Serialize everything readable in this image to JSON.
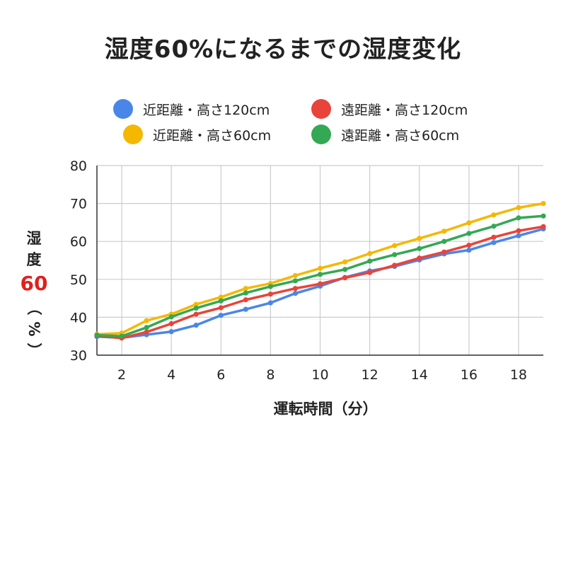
{
  "chart_data": {
    "type": "line",
    "title": "湿度60%になるまでの湿度変化",
    "xlabel": "運転時間（分）",
    "ylabel_parts": [
      "湿",
      "度",
      "60",
      "（",
      "%",
      "）"
    ],
    "xlim": [
      1,
      19
    ],
    "ylim": [
      30,
      80
    ],
    "xticks": [
      2,
      4,
      6,
      8,
      10,
      12,
      14,
      16,
      18
    ],
    "yticks": [
      30,
      40,
      50,
      60,
      70,
      80
    ],
    "grid": true,
    "legend_position": "top",
    "x": [
      1,
      2,
      3,
      4,
      5,
      6,
      7,
      8,
      9,
      10,
      11,
      12,
      13,
      14,
      15,
      16,
      17,
      18,
      19
    ],
    "series": [
      {
        "name": "近距離・高さ120cm",
        "color": "#4a86e8",
        "values": [
          34.9,
          34.6,
          35.4,
          36.2,
          37.9,
          40.5,
          42.1,
          43.8,
          46.3,
          48.2,
          50.5,
          52.2,
          53.4,
          55.1,
          56.7,
          57.7,
          59.7,
          61.5,
          63.3
        ]
      },
      {
        "name": "遠距離・高さ120cm",
        "color": "#e8443a",
        "values": [
          35.1,
          34.5,
          36.1,
          38.3,
          40.8,
          42.5,
          44.6,
          46.1,
          47.6,
          48.8,
          50.4,
          51.8,
          53.7,
          55.6,
          57.2,
          59.0,
          61.1,
          62.8,
          63.9
        ]
      },
      {
        "name": "近距離・高さ60cm",
        "color": "#f4b800",
        "values": [
          35.5,
          35.8,
          39.1,
          40.8,
          43.4,
          45.3,
          47.6,
          48.9,
          51.0,
          52.9,
          54.6,
          56.8,
          58.9,
          60.8,
          62.7,
          64.9,
          67.0,
          68.9,
          70.0
        ]
      },
      {
        "name": "遠距離・高さ60cm",
        "color": "#34a853",
        "values": [
          35.3,
          35.0,
          37.3,
          40.1,
          42.4,
          44.3,
          46.4,
          48.1,
          49.6,
          51.3,
          52.6,
          54.8,
          56.5,
          58.1,
          60.0,
          62.1,
          64.0,
          66.2,
          66.7
        ]
      }
    ]
  }
}
